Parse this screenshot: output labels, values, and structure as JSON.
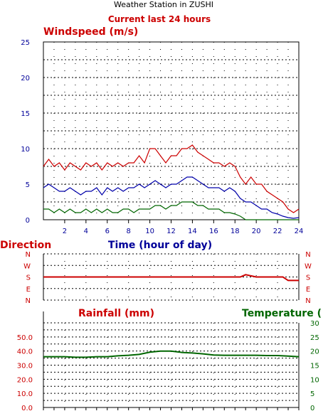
{
  "header": {
    "title": "Weather Station in ZUSHI",
    "subtitle": "Current last 24 hours"
  },
  "colors": {
    "red": "#cc0000",
    "blue": "#0000aa",
    "green": "#006600",
    "dark_red": "#aa0000"
  },
  "chart_data": [
    {
      "type": "line",
      "title": "Windspeed (m/s)",
      "xlabel": "Time (hour of day)",
      "ylabel": "",
      "xlim": [
        0,
        24
      ],
      "ylim": [
        0,
        25
      ],
      "x_ticks": [
        "2",
        "4",
        "6",
        "8",
        "10",
        "12",
        "14",
        "16",
        "18",
        "20",
        "22",
        "24"
      ],
      "y_ticks": [
        "0",
        "5",
        "10",
        "15",
        "20",
        "25"
      ],
      "grid": true,
      "series": [
        {
          "key": "gust",
          "color": "#cc0000",
          "x": [
            0,
            0.5,
            1,
            1.5,
            2,
            2.5,
            3,
            3.5,
            4,
            4.5,
            5,
            5.5,
            6,
            6.5,
            7,
            7.5,
            8,
            8.5,
            9,
            9.5,
            10,
            10.5,
            11,
            11.5,
            12,
            12.5,
            13,
            13.5,
            14,
            14.5,
            15,
            15.5,
            16,
            16.5,
            17,
            17.5,
            18,
            18.5,
            19,
            19.5,
            20,
            20.5,
            21,
            21.5,
            22,
            22.5,
            23,
            23.5,
            24
          ],
          "y": [
            7.5,
            8.5,
            7.5,
            8,
            7,
            8,
            7.5,
            7,
            8,
            7.5,
            8,
            7,
            8,
            7.5,
            8,
            7.5,
            8,
            8,
            9,
            8,
            10,
            10,
            9,
            8,
            9,
            9,
            10,
            10,
            10.5,
            9.5,
            9,
            8.5,
            8,
            8,
            7.5,
            8,
            7.5,
            6,
            5,
            6,
            5,
            5,
            4,
            3.5,
            3,
            2.5,
            1.5,
            1,
            1.5
          ]
        },
        {
          "key": "average",
          "color": "#0000aa",
          "x": [
            0,
            0.5,
            1,
            1.5,
            2,
            2.5,
            3,
            3.5,
            4,
            4.5,
            5,
            5.5,
            6,
            6.5,
            7,
            7.5,
            8,
            8.5,
            9,
            9.5,
            10,
            10.5,
            11,
            11.5,
            12,
            12.5,
            13,
            13.5,
            14,
            14.5,
            15,
            15.5,
            16,
            16.5,
            17,
            17.5,
            18,
            18.5,
            19,
            19.5,
            20,
            20.5,
            21,
            21.5,
            22,
            22.5,
            23,
            23.5,
            24
          ],
          "y": [
            4.5,
            5,
            4.5,
            4,
            4,
            4.5,
            4,
            3.5,
            4,
            4,
            4.5,
            3.5,
            4.5,
            4,
            4.5,
            4,
            4.5,
            4.5,
            5,
            4.5,
            5,
            5.5,
            5,
            4.5,
            5,
            5,
            5.5,
            6,
            6,
            5.5,
            5,
            4.5,
            4.5,
            4.5,
            4,
            4.5,
            4,
            3,
            2.5,
            2.5,
            2,
            1.5,
            1.5,
            1,
            0.8,
            0.5,
            0.3,
            0.2,
            0.3
          ]
        },
        {
          "key": "minimum",
          "color": "#006600",
          "x": [
            0,
            0.5,
            1,
            1.5,
            2,
            2.5,
            3,
            3.5,
            4,
            4.5,
            5,
            5.5,
            6,
            6.5,
            7,
            7.5,
            8,
            8.5,
            9,
            9.5,
            10,
            10.5,
            11,
            11.5,
            12,
            12.5,
            13,
            13.5,
            14,
            14.5,
            15,
            15.5,
            16,
            16.5,
            17,
            17.5,
            18,
            18.5,
            19,
            19.5,
            20,
            20.5,
            21,
            21.5,
            22,
            22.5,
            23,
            23.5,
            24
          ],
          "y": [
            1.5,
            1.5,
            1,
            1.5,
            1,
            1.5,
            1,
            1,
            1.5,
            1,
            1.5,
            1,
            1.5,
            1,
            1,
            1.5,
            1.5,
            1,
            1.5,
            1.5,
            1.5,
            2,
            2,
            1.5,
            2,
            2,
            2.5,
            2.5,
            2.5,
            2,
            2,
            1.5,
            1.5,
            1.5,
            1,
            1,
            0.8,
            0.5,
            0,
            0,
            0,
            0,
            0,
            0,
            0,
            0,
            0,
            0,
            0
          ]
        }
      ]
    },
    {
      "type": "line",
      "title": "Direction",
      "xlim": [
        0,
        24
      ],
      "y_ticks": [
        "N",
        "W",
        "S",
        "E",
        "N"
      ],
      "grid": true,
      "series": [
        {
          "key": "direction",
          "color": "#cc0000",
          "x": [
            0,
            2,
            4,
            6,
            8,
            10,
            12,
            14,
            16,
            18,
            18.5,
            19,
            20,
            21,
            22,
            22.5,
            23,
            24
          ],
          "y": [
            2,
            2,
            2,
            2,
            2,
            2,
            2,
            2,
            2,
            2,
            2,
            1.8,
            2,
            2,
            2,
            2,
            2.3,
            2.3
          ]
        }
      ]
    },
    {
      "type": "line",
      "title": "Rainfall (mm) / Temperature",
      "rain_title": "Rainfall (mm)",
      "temp_title": "Temperature (",
      "xlim": [
        0,
        24
      ],
      "rain_ylim": [
        0,
        60
      ],
      "temp_ylim": [
        0,
        30
      ],
      "rain_ticks": [
        "0.0",
        "10.0",
        "20.0",
        "30.0",
        "40.0",
        "50.0"
      ],
      "temp_ticks": [
        "0",
        "5",
        "10",
        "15",
        "20",
        "25",
        "30"
      ],
      "grid": true,
      "series": [
        {
          "key": "temperature",
          "color": "#006600",
          "x": [
            0,
            1,
            2,
            3,
            4,
            5,
            6,
            7,
            8,
            9,
            10,
            11,
            12,
            13,
            14,
            15,
            16,
            17,
            18,
            19,
            20,
            21,
            22,
            23,
            24
          ],
          "y": [
            18,
            18,
            18,
            17.8,
            17.8,
            18,
            18,
            18.3,
            18.5,
            18.8,
            19.6,
            20,
            20,
            19.5,
            19.3,
            19,
            18.6,
            18.5,
            18.5,
            18.5,
            18.5,
            18.4,
            18.4,
            18.2,
            18
          ]
        }
      ]
    }
  ]
}
